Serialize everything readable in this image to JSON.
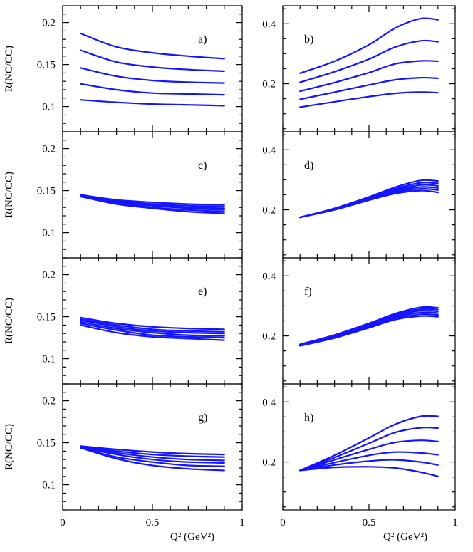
{
  "chart_data": [
    {
      "panel": "a",
      "label": "a)",
      "type": "line",
      "ylabel": "R(NC/CC)",
      "xlabel": "",
      "xlim": [
        0,
        1
      ],
      "ylim": [
        0.07,
        0.22
      ],
      "yticks": [
        "0.1",
        "0.15",
        "0.2"
      ],
      "xticks": [],
      "x": [
        0.1,
        0.3,
        0.5,
        0.7,
        0.9
      ],
      "series": [
        {
          "name": "s1",
          "values": [
            0.187,
            0.171,
            0.164,
            0.16,
            0.157
          ]
        },
        {
          "name": "s2",
          "values": [
            0.167,
            0.153,
            0.147,
            0.144,
            0.142
          ]
        },
        {
          "name": "s3",
          "values": [
            0.146,
            0.136,
            0.131,
            0.129,
            0.128
          ]
        },
        {
          "name": "s4",
          "values": [
            0.127,
            0.12,
            0.116,
            0.115,
            0.114
          ]
        },
        {
          "name": "s5",
          "values": [
            0.108,
            0.105,
            0.103,
            0.102,
            0.101
          ]
        }
      ]
    },
    {
      "panel": "b",
      "label": "b)",
      "type": "line",
      "ylabel": "",
      "xlabel": "",
      "xlim": [
        0,
        1
      ],
      "ylim": [
        0.04,
        0.46
      ],
      "yticks": [
        "0.2",
        "0.4"
      ],
      "xticks": [],
      "x": [
        0.1,
        0.3,
        0.5,
        0.65,
        0.8,
        0.9
      ],
      "series": [
        {
          "name": "s1",
          "values": [
            0.235,
            0.275,
            0.33,
            0.385,
            0.417,
            0.413
          ]
        },
        {
          "name": "s2",
          "values": [
            0.205,
            0.24,
            0.282,
            0.322,
            0.343,
            0.34
          ]
        },
        {
          "name": "s3",
          "values": [
            0.175,
            0.204,
            0.237,
            0.266,
            0.276,
            0.275
          ]
        },
        {
          "name": "s4",
          "values": [
            0.148,
            0.172,
            0.196,
            0.213,
            0.22,
            0.218
          ]
        },
        {
          "name": "s5",
          "values": [
            0.122,
            0.14,
            0.157,
            0.168,
            0.172,
            0.17
          ]
        }
      ]
    },
    {
      "panel": "c",
      "label": "c)",
      "type": "line",
      "ylabel": "R(NC/CC)",
      "xlabel": "",
      "xlim": [
        0,
        1
      ],
      "ylim": [
        0.07,
        0.22
      ],
      "yticks": [
        "0.1",
        "0.15",
        "0.2"
      ],
      "xticks": [],
      "x": [
        0.1,
        0.3,
        0.5,
        0.7,
        0.9
      ],
      "series": [
        {
          "name": "s1",
          "values": [
            0.145,
            0.139,
            0.136,
            0.134,
            0.133
          ]
        },
        {
          "name": "s2",
          "values": [
            0.145,
            0.138,
            0.134,
            0.132,
            0.131
          ]
        },
        {
          "name": "s3",
          "values": [
            0.144,
            0.137,
            0.133,
            0.13,
            0.129
          ]
        },
        {
          "name": "s4",
          "values": [
            0.144,
            0.136,
            0.132,
            0.129,
            0.127
          ]
        },
        {
          "name": "s5",
          "values": [
            0.143,
            0.135,
            0.13,
            0.127,
            0.125
          ]
        },
        {
          "name": "s6",
          "values": [
            0.143,
            0.134,
            0.129,
            0.125,
            0.123
          ]
        }
      ]
    },
    {
      "panel": "d",
      "label": "d)",
      "type": "line",
      "ylabel": "",
      "xlabel": "",
      "xlim": [
        0,
        1
      ],
      "ylim": [
        0.04,
        0.46
      ],
      "yticks": [
        "0.2",
        "0.4"
      ],
      "xticks": [],
      "x": [
        0.1,
        0.3,
        0.5,
        0.65,
        0.8,
        0.9
      ],
      "series": [
        {
          "name": "s1",
          "values": [
            0.175,
            0.205,
            0.243,
            0.275,
            0.298,
            0.296
          ]
        },
        {
          "name": "s2",
          "values": [
            0.175,
            0.204,
            0.24,
            0.27,
            0.29,
            0.288
          ]
        },
        {
          "name": "s3",
          "values": [
            0.175,
            0.203,
            0.238,
            0.266,
            0.283,
            0.28
          ]
        },
        {
          "name": "s4",
          "values": [
            0.175,
            0.202,
            0.236,
            0.262,
            0.276,
            0.273
          ]
        },
        {
          "name": "s5",
          "values": [
            0.175,
            0.201,
            0.234,
            0.258,
            0.27,
            0.266
          ]
        },
        {
          "name": "s6",
          "values": [
            0.175,
            0.2,
            0.232,
            0.254,
            0.264,
            0.258
          ]
        }
      ]
    },
    {
      "panel": "e",
      "label": "e)",
      "type": "line",
      "ylabel": "R(NC/CC)",
      "xlabel": "",
      "xlim": [
        0,
        1
      ],
      "ylim": [
        0.07,
        0.22
      ],
      "yticks": [
        "0.1",
        "0.15",
        "0.2"
      ],
      "xticks": [],
      "x": [
        0.1,
        0.3,
        0.5,
        0.7,
        0.9
      ],
      "series": [
        {
          "name": "s1",
          "values": [
            0.149,
            0.142,
            0.138,
            0.136,
            0.135
          ]
        },
        {
          "name": "s2",
          "values": [
            0.147,
            0.14,
            0.135,
            0.133,
            0.132
          ]
        },
        {
          "name": "s3",
          "values": [
            0.146,
            0.138,
            0.133,
            0.131,
            0.13
          ]
        },
        {
          "name": "s4",
          "values": [
            0.144,
            0.136,
            0.131,
            0.128,
            0.127
          ]
        },
        {
          "name": "s5",
          "values": [
            0.142,
            0.134,
            0.128,
            0.126,
            0.125
          ]
        },
        {
          "name": "s6",
          "values": [
            0.14,
            0.131,
            0.126,
            0.124,
            0.122
          ]
        }
      ]
    },
    {
      "panel": "f",
      "label": "f)",
      "type": "line",
      "ylabel": "",
      "xlabel": "",
      "xlim": [
        0,
        1
      ],
      "ylim": [
        0.04,
        0.46
      ],
      "yticks": [
        "0.2",
        "0.4"
      ],
      "xticks": [],
      "x": [
        0.1,
        0.3,
        0.5,
        0.65,
        0.8,
        0.9
      ],
      "series": [
        {
          "name": "s1",
          "values": [
            0.172,
            0.203,
            0.242,
            0.274,
            0.295,
            0.294
          ]
        },
        {
          "name": "s2",
          "values": [
            0.171,
            0.201,
            0.239,
            0.27,
            0.289,
            0.288
          ]
        },
        {
          "name": "s3",
          "values": [
            0.17,
            0.199,
            0.236,
            0.266,
            0.284,
            0.282
          ]
        },
        {
          "name": "s4",
          "values": [
            0.169,
            0.197,
            0.233,
            0.262,
            0.278,
            0.276
          ]
        },
        {
          "name": "s5",
          "values": [
            0.168,
            0.195,
            0.23,
            0.258,
            0.272,
            0.27
          ]
        },
        {
          "name": "s6",
          "values": [
            0.167,
            0.193,
            0.227,
            0.254,
            0.266,
            0.264
          ]
        }
      ]
    },
    {
      "panel": "g",
      "label": "g)",
      "type": "line",
      "ylabel": "R(NC/CC)",
      "xlabel": "Q² (GeV²)",
      "xlim": [
        0,
        1
      ],
      "ylim": [
        0.07,
        0.22
      ],
      "yticks": [
        "0.1",
        "0.15",
        "0.2"
      ],
      "xticks": [
        "0",
        "0.5",
        "1"
      ],
      "x": [
        0.1,
        0.3,
        0.5,
        0.7,
        0.9
      ],
      "series": [
        {
          "name": "s1",
          "values": [
            0.146,
            0.142,
            0.139,
            0.137,
            0.136
          ]
        },
        {
          "name": "s2",
          "values": [
            0.146,
            0.14,
            0.136,
            0.134,
            0.133
          ]
        },
        {
          "name": "s3",
          "values": [
            0.145,
            0.138,
            0.133,
            0.13,
            0.129
          ]
        },
        {
          "name": "s4",
          "values": [
            0.145,
            0.136,
            0.13,
            0.127,
            0.126
          ]
        },
        {
          "name": "s5",
          "values": [
            0.144,
            0.133,
            0.127,
            0.123,
            0.122
          ]
        },
        {
          "name": "s6",
          "values": [
            0.144,
            0.131,
            0.123,
            0.119,
            0.117
          ]
        }
      ]
    },
    {
      "panel": "h",
      "label": "h)",
      "type": "line",
      "ylabel": "",
      "xlabel": "Q² (GeV²)",
      "xlim": [
        0,
        1
      ],
      "ylim": [
        0.04,
        0.46
      ],
      "yticks": [
        "0.2",
        "0.4"
      ],
      "xticks": [
        "0",
        "0.5",
        "1"
      ],
      "x": [
        0.1,
        0.3,
        0.5,
        0.65,
        0.8,
        0.9
      ],
      "series": [
        {
          "name": "s1",
          "values": [
            0.172,
            0.222,
            0.28,
            0.325,
            0.352,
            0.352
          ]
        },
        {
          "name": "s2",
          "values": [
            0.172,
            0.215,
            0.262,
            0.298,
            0.314,
            0.313
          ]
        },
        {
          "name": "s3",
          "values": [
            0.172,
            0.207,
            0.242,
            0.265,
            0.272,
            0.268
          ]
        },
        {
          "name": "s4",
          "values": [
            0.172,
            0.198,
            0.222,
            0.233,
            0.23,
            0.224
          ]
        },
        {
          "name": "s5",
          "values": [
            0.172,
            0.19,
            0.203,
            0.207,
            0.2,
            0.19
          ]
        },
        {
          "name": "s6",
          "values": [
            0.172,
            0.182,
            0.184,
            0.18,
            0.166,
            0.152
          ]
        }
      ]
    }
  ],
  "colors": {
    "curve": "#1414ff",
    "axis": "#000000",
    "background": "#ffffff"
  }
}
